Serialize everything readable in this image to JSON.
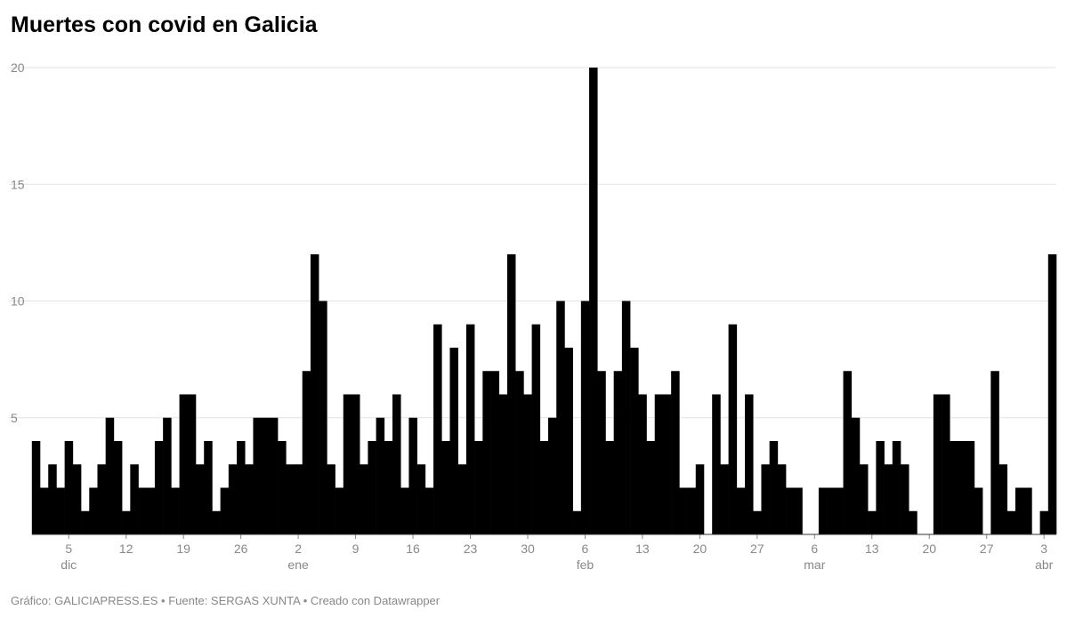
{
  "chart_data": {
    "type": "bar",
    "title": "Muertes con covid en Galicia",
    "footer": "Gráfico: GALICIAPRESS.ES • Fuente: SERGAS XUNTA • Creado con Datawrapper",
    "color": "#000000",
    "grid": true,
    "ylim": [
      0,
      20
    ],
    "yticks": [
      5,
      10,
      15,
      20
    ],
    "categories": [
      null,
      null,
      null,
      null,
      "5",
      null,
      null,
      null,
      null,
      null,
      null,
      "12",
      null,
      null,
      null,
      null,
      null,
      null,
      "19",
      null,
      null,
      null,
      null,
      null,
      null,
      "26",
      null,
      null,
      null,
      null,
      null,
      null,
      "2",
      null,
      null,
      null,
      null,
      null,
      null,
      "9",
      null,
      null,
      null,
      null,
      null,
      null,
      "16",
      null,
      null,
      null,
      null,
      null,
      null,
      "23",
      null,
      null,
      null,
      null,
      null,
      null,
      "30",
      null,
      null,
      null,
      null,
      null,
      null,
      "6",
      null,
      null,
      null,
      null,
      null,
      null,
      "13",
      null,
      null,
      null,
      null,
      null,
      null,
      "20",
      null,
      null,
      null,
      null,
      null,
      null,
      "27",
      null,
      null,
      null,
      null,
      null,
      null,
      "6",
      null,
      null,
      null,
      null,
      null,
      null,
      "13",
      null,
      null,
      null,
      null,
      null,
      null,
      "20",
      null,
      null,
      null,
      null,
      null,
      null,
      "27",
      null,
      null,
      null,
      null,
      null,
      null,
      "3",
      null
    ],
    "months": [
      null,
      null,
      null,
      null,
      "dic",
      null,
      null,
      null,
      null,
      null,
      null,
      null,
      null,
      null,
      null,
      null,
      null,
      null,
      null,
      null,
      null,
      null,
      null,
      null,
      null,
      null,
      null,
      null,
      null,
      null,
      null,
      null,
      "ene",
      null,
      null,
      null,
      null,
      null,
      null,
      null,
      null,
      null,
      null,
      null,
      null,
      null,
      null,
      null,
      null,
      null,
      null,
      null,
      null,
      null,
      null,
      null,
      null,
      null,
      null,
      null,
      null,
      null,
      null,
      null,
      null,
      null,
      null,
      "feb",
      null,
      null,
      null,
      null,
      null,
      null,
      null,
      null,
      null,
      null,
      null,
      null,
      null,
      null,
      null,
      null,
      null,
      null,
      null,
      null,
      null,
      null,
      null,
      null,
      null,
      null,
      null,
      "mar",
      null,
      null,
      null,
      null,
      null,
      null,
      null,
      null,
      null,
      null,
      null,
      null,
      null,
      null,
      null,
      null,
      null,
      null,
      null,
      null,
      null,
      null,
      null,
      null,
      null,
      null,
      null,
      "abr",
      null
    ],
    "values": [
      4,
      2,
      3,
      2,
      4,
      3,
      1,
      2,
      3,
      5,
      4,
      1,
      3,
      2,
      2,
      4,
      5,
      2,
      6,
      6,
      3,
      4,
      1,
      2,
      3,
      4,
      3,
      5,
      5,
      5,
      4,
      3,
      3,
      7,
      12,
      10,
      3,
      2,
      6,
      6,
      3,
      4,
      5,
      4,
      6,
      2,
      5,
      3,
      2,
      9,
      4,
      8,
      3,
      9,
      4,
      7,
      7,
      6,
      12,
      7,
      6,
      9,
      4,
      5,
      10,
      8,
      1,
      10,
      20,
      7,
      4,
      7,
      10,
      8,
      6,
      4,
      6,
      6,
      7,
      2,
      2,
      3,
      0,
      6,
      3,
      9,
      2,
      6,
      1,
      3,
      4,
      3,
      2,
      2,
      0,
      0,
      2,
      2,
      2,
      7,
      5,
      3,
      1,
      4,
      3,
      4,
      3,
      1,
      0,
      0,
      6,
      6,
      4,
      4,
      4,
      2,
      0,
      7,
      3,
      1,
      2,
      2,
      0,
      1,
      12
    ]
  }
}
